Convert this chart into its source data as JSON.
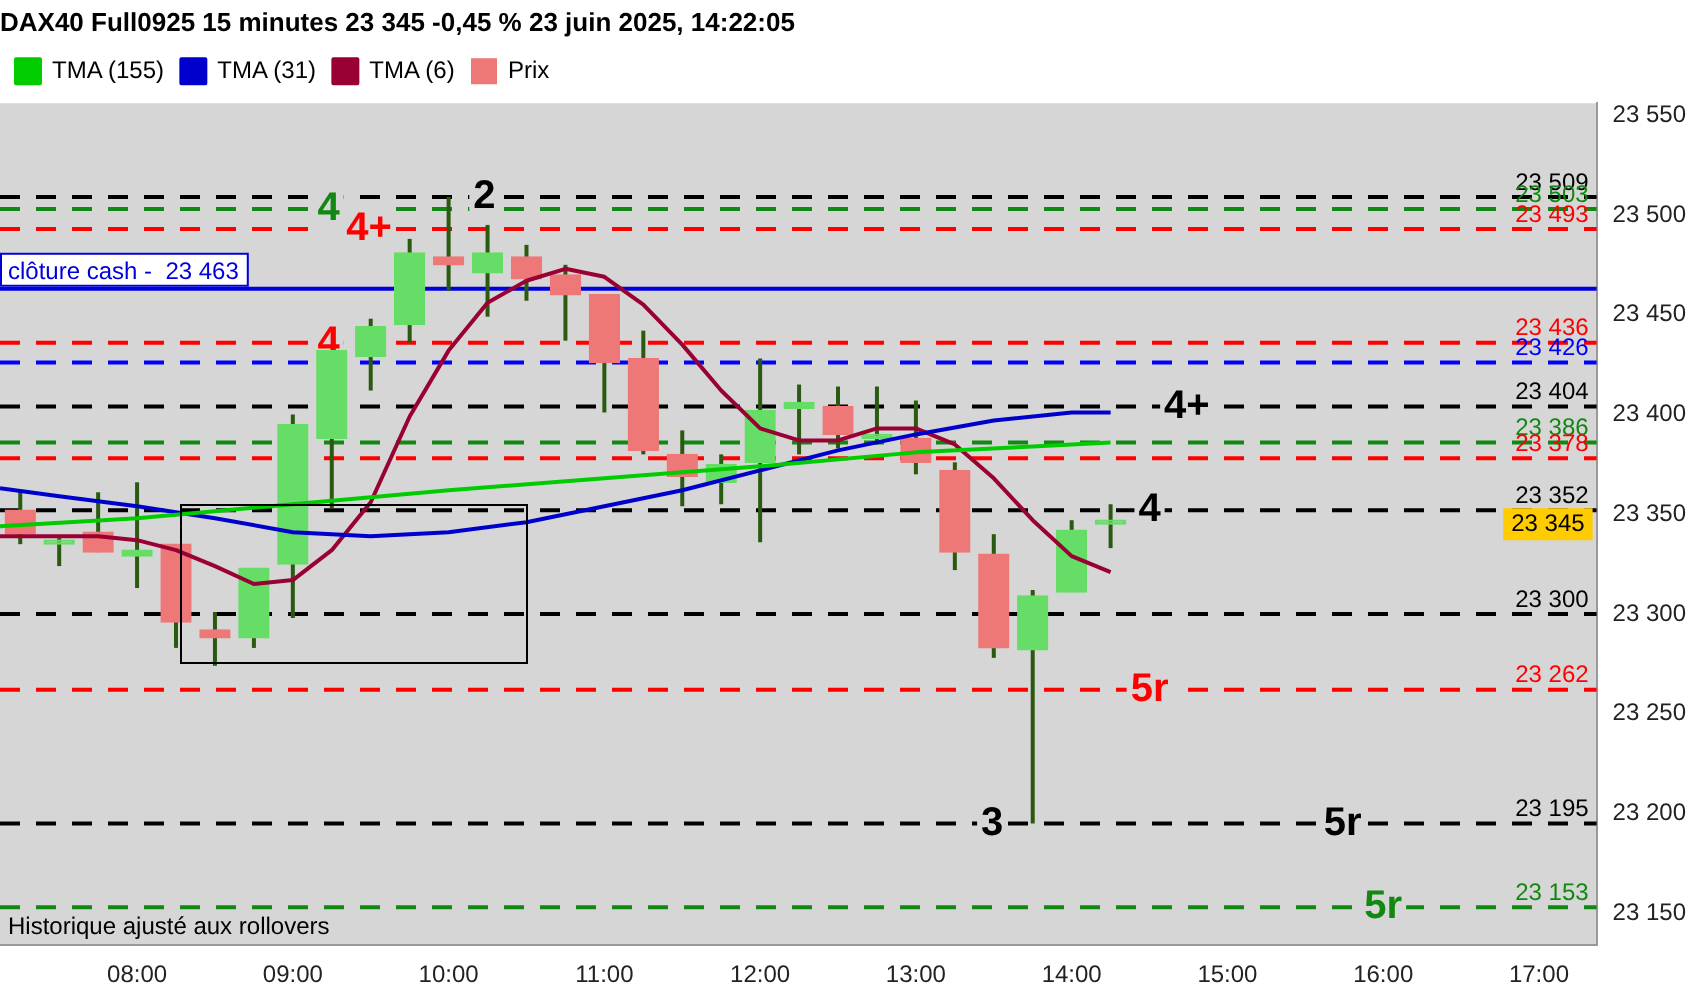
{
  "chart_data": {
    "type": "candlestick",
    "title": "DAX40 Full0925 15 minutes 23 345 -0,45 % 23 juin 2025, 14:22:05",
    "legend": "top left",
    "series": [
      {
        "name": "Prix",
        "x": [
          7.25,
          7.5,
          7.75,
          8,
          8.25,
          8.5,
          8.75,
          9,
          9.25,
          9.5,
          9.75,
          10,
          10.25,
          10.5,
          10.75,
          11,
          11.25,
          11.5,
          11.75,
          12,
          12.25,
          12.5,
          12.75,
          13,
          13.25,
          13.5,
          13.75,
          14,
          14.25
        ],
        "ohlc": [
          [
            23352,
            23362,
            23335,
            23340
          ],
          [
            23335,
            23338,
            23324,
            23337
          ],
          [
            23341,
            23361,
            23331,
            23331
          ],
          [
            23329,
            23366,
            23313,
            23332
          ],
          [
            23335,
            23335,
            23283,
            23296
          ],
          [
            23292,
            23301,
            23274,
            23288
          ],
          [
            23288,
            23323,
            23283,
            23323
          ],
          [
            23325,
            23400,
            23298,
            23395
          ],
          [
            23388,
            23432,
            23353,
            23432
          ],
          [
            23429,
            23448,
            23412,
            23444
          ],
          [
            23445,
            23488,
            23436,
            23481
          ],
          [
            23479,
            23509,
            23462,
            23475
          ],
          [
            23471,
            23495,
            23449,
            23481
          ],
          [
            23479,
            23485,
            23457,
            23468
          ],
          [
            23470,
            23475,
            23437,
            23460
          ],
          [
            23460,
            23460,
            23401,
            23426
          ],
          [
            23428,
            23442,
            23380,
            23382
          ],
          [
            23380,
            23392,
            23354,
            23369
          ],
          [
            23366,
            23380,
            23355,
            23375
          ],
          [
            23376,
            23428,
            23336,
            23402
          ],
          [
            23403,
            23415,
            23380,
            23406
          ],
          [
            23404,
            23414,
            23383,
            23390
          ],
          [
            23388,
            23414,
            23385,
            23388
          ],
          [
            23388,
            23407,
            23370,
            23376
          ],
          [
            23372,
            23376,
            23322,
            23331
          ],
          [
            23330,
            23340,
            23278,
            23283
          ],
          [
            23282,
            23312,
            23195,
            23309
          ],
          [
            23311,
            23347,
            23311,
            23342
          ],
          [
            23345,
            23355,
            23333,
            23345
          ]
        ],
        "colors": [
          "#ee7777",
          "#66dd66",
          "#ee7777",
          "#66dd66",
          "#ee7777",
          "#ee7777",
          "#66dd66",
          "#66dd66",
          "#66dd66",
          "#66dd66",
          "#66dd66",
          "#ee7777",
          "#66dd66",
          "#ee7777",
          "#ee7777",
          "#ee7777",
          "#ee7777",
          "#ee7777",
          "#66dd66",
          "#66dd66",
          "#66dd66",
          "#ee7777",
          "#66dd66",
          "#ee7777",
          "#ee7777",
          "#ee7777",
          "#66dd66",
          "#66dd66",
          "#66dd66"
        ]
      },
      {
        "name": "TMA (155)",
        "type": "line",
        "color": "#00cc00",
        "x": [
          7.12,
          8,
          9,
          10,
          11,
          12,
          13,
          13.75,
          14.25
        ],
        "values": [
          23344,
          23348,
          23355,
          23362,
          23368,
          23374,
          23381,
          23384,
          23386
        ]
      },
      {
        "name": "TMA (31)",
        "type": "line",
        "color": "#0000cc",
        "x": [
          7.12,
          7.5,
          8,
          8.5,
          9,
          9.5,
          10,
          10.5,
          11,
          11.5,
          12,
          12.5,
          13,
          13.5,
          14,
          14.25
        ],
        "values": [
          23363,
          23359,
          23354,
          23348,
          23341,
          23339,
          23341,
          23346,
          23354,
          23362,
          23372,
          23382,
          23390,
          23397,
          23401,
          23401
        ]
      },
      {
        "name": "TMA (6)",
        "type": "line",
        "color": "#990033",
        "x": [
          7.12,
          7.75,
          8,
          8.25,
          8.5,
          8.75,
          9,
          9.25,
          9.5,
          9.75,
          10,
          10.25,
          10.5,
          10.75,
          11,
          11.25,
          11.5,
          11.75,
          12,
          12.25,
          12.5,
          12.75,
          13,
          13.25,
          13.5,
          13.75,
          14,
          14.25
        ],
        "values": [
          23339,
          23339,
          23337,
          23332,
          23324,
          23315,
          23317,
          23332,
          23356,
          23399,
          23432,
          23456,
          23467,
          23473,
          23469,
          23455,
          23435,
          23412,
          23393,
          23387,
          23387,
          23393,
          23393,
          23385,
          23368,
          23347,
          23329,
          23321
        ]
      }
    ],
    "xlim": [
      7.12,
      17.37
    ],
    "xticks": [
      {
        "value": 8,
        "label": "08:00"
      },
      {
        "value": 9,
        "label": "09:00"
      },
      {
        "value": 10,
        "label": "10:00"
      },
      {
        "value": 11,
        "label": "11:00"
      },
      {
        "value": 12,
        "label": "12:00"
      },
      {
        "value": 13,
        "label": "13:00"
      },
      {
        "value": 14,
        "label": "14:00"
      },
      {
        "value": 15,
        "label": "15:00"
      },
      {
        "value": 16,
        "label": "16:00"
      },
      {
        "value": 17,
        "label": "17:00"
      }
    ],
    "ylim": [
      23134,
      23556
    ],
    "yticks": [
      {
        "value": 23150,
        "label": "23 150"
      },
      {
        "value": 23200,
        "label": "23 200"
      },
      {
        "value": 23250,
        "label": "23 250"
      },
      {
        "value": 23300,
        "label": "23 300"
      },
      {
        "value": 23350,
        "label": "23 350"
      },
      {
        "value": 23400,
        "label": "23 400"
      },
      {
        "value": 23450,
        "label": "23 450"
      },
      {
        "value": 23500,
        "label": "23 500"
      },
      {
        "value": 23550,
        "label": "23 550"
      }
    ],
    "ref_lines": [
      {
        "axis": "y",
        "value": 23509,
        "label": "23 509",
        "color": "#000000",
        "line_style": "dashed"
      },
      {
        "axis": "y",
        "value": 23503,
        "label": "23 503",
        "color": "#118811",
        "line_style": "dashed"
      },
      {
        "axis": "y",
        "value": 23493,
        "label": "23 493",
        "color": "#ff0000",
        "line_style": "dashed"
      },
      {
        "axis": "y",
        "value": 23463,
        "label": "clôture cash -  23 463",
        "color": "#0000dd",
        "line_style": "solid"
      },
      {
        "axis": "y",
        "value": 23436,
        "label": "23 436",
        "color": "#ff0000",
        "line_style": "dashed"
      },
      {
        "axis": "y",
        "value": 23426,
        "label": "23 426",
        "color": "#0000ff",
        "line_style": "dashed"
      },
      {
        "axis": "y",
        "value": 23404,
        "label": "23 404",
        "color": "#000000",
        "line_style": "dashed"
      },
      {
        "axis": "y",
        "value": 23386,
        "label": "23 386",
        "color": "#118811",
        "line_style": "dashed"
      },
      {
        "axis": "y",
        "value": 23378,
        "label": "23 378",
        "color": "#ff0000",
        "line_style": "dashed"
      },
      {
        "axis": "y",
        "value": 23352,
        "label": "23 352",
        "color": "#000000",
        "line_style": "dashed"
      },
      {
        "axis": "y",
        "value": 23300,
        "label": "23 300",
        "color": "#000000",
        "line_style": "dashed"
      },
      {
        "axis": "y",
        "value": 23262,
        "label": "23 262",
        "color": "#ff0000",
        "line_style": "dashed"
      },
      {
        "axis": "y",
        "value": 23195,
        "label": "23 195",
        "color": "#000000",
        "line_style": "dashed"
      },
      {
        "axis": "y",
        "value": 23153,
        "label": "23 153",
        "color": "#118811",
        "line_style": "dashed"
      }
    ],
    "annotations": [
      {
        "text": "4",
        "x": 9.23,
        "y": 23503
      },
      {
        "text": "4+",
        "x": 9.49,
        "y": 23493
      },
      {
        "text": "2",
        "x": 10.23,
        "y": 23509
      },
      {
        "text": "4",
        "x": 9.23,
        "y": 23436
      },
      {
        "text": "4+",
        "x": 14.74,
        "y": 23404
      },
      {
        "text": "4",
        "x": 14.5,
        "y": 23352
      },
      {
        "text": "5r",
        "x": 14.5,
        "y": 23262
      },
      {
        "text": "3",
        "x": 13.49,
        "y": 23195
      },
      {
        "text": "5r",
        "x": 15.74,
        "y": 23195
      },
      {
        "text": "5r",
        "x": 16,
        "y": 23153
      },
      "23 345",
      "Historique ajusté aux rollovers"
    ]
  }
}
